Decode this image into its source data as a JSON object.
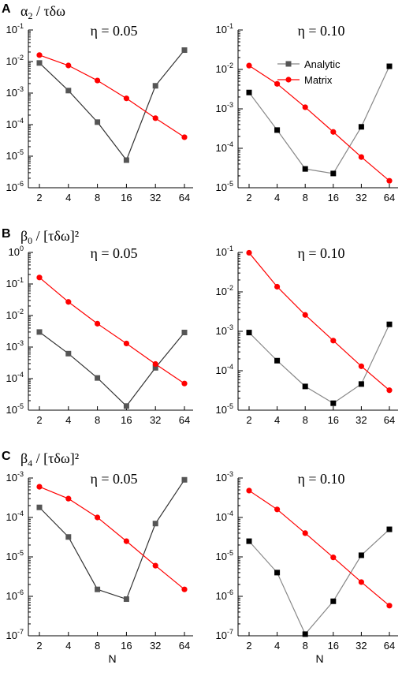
{
  "rows": [
    {
      "letter": "A",
      "label_base": "α",
      "label_sub": "2",
      "label_rest": " / τδω"
    },
    {
      "letter": "B",
      "label_base": "β",
      "label_sub": "0",
      "label_rest": " / [τδω]²"
    },
    {
      "letter": "C",
      "label_base": "β",
      "label_sub": "4",
      "label_rest": " / [τδω]²"
    }
  ],
  "x_axis_label": "N",
  "legend": {
    "analytic": "Analytic",
    "matrix": "Matrix"
  },
  "colors": {
    "analytic_left": "#333333",
    "analytic_right": "#888888",
    "analytic_marker": "#000000",
    "matrix": "#ff0000",
    "matrix_marker": "#ff0000"
  },
  "chart_data": [
    {
      "type": "line",
      "row": "A",
      "title": "η = 0.05",
      "log_y": true,
      "ylim_exp": [
        -6,
        -1
      ],
      "categories": [
        "2",
        "4",
        "8",
        "16",
        "32",
        "64"
      ],
      "series": [
        {
          "name": "Analytic",
          "values": [
            0.009,
            0.0012,
            0.00012,
            7.5e-06,
            0.0017,
            0.023
          ]
        },
        {
          "name": "Matrix",
          "values": [
            0.016,
            0.0075,
            0.0025,
            0.00068,
            0.00016,
            4e-05
          ]
        }
      ]
    },
    {
      "type": "line",
      "row": "A",
      "title": "η = 0.10",
      "log_y": true,
      "ylim_exp": [
        -5,
        -1
      ],
      "categories": [
        "2",
        "4",
        "8",
        "16",
        "32",
        "64"
      ],
      "series": [
        {
          "name": "Analytic",
          "values": [
            0.0026,
            0.00029,
            3e-05,
            2.3e-05,
            0.00035,
            0.012
          ]
        },
        {
          "name": "Matrix",
          "values": [
            0.0125,
            0.0043,
            0.0011,
            0.00026,
            6e-05,
            1.5e-05
          ]
        }
      ]
    },
    {
      "type": "line",
      "row": "B",
      "title": "η = 0.05",
      "log_y": true,
      "ylim_exp": [
        -5,
        0
      ],
      "categories": [
        "2",
        "4",
        "8",
        "16",
        "32",
        "64"
      ],
      "series": [
        {
          "name": "Analytic",
          "values": [
            0.003,
            0.00062,
            0.000105,
            1.35e-05,
            0.00022,
            0.0029
          ]
        },
        {
          "name": "Matrix",
          "values": [
            0.16,
            0.027,
            0.0055,
            0.0013,
            0.00029,
            7e-05
          ]
        }
      ]
    },
    {
      "type": "line",
      "row": "B",
      "title": "η = 0.10",
      "log_y": true,
      "ylim_exp": [
        -5,
        -1
      ],
      "categories": [
        "2",
        "4",
        "8",
        "16",
        "32",
        "64"
      ],
      "series": [
        {
          "name": "Analytic",
          "values": [
            0.00093,
            0.00018,
            4e-05,
            1.5e-05,
            4.6e-05,
            0.0015
          ]
        },
        {
          "name": "Matrix",
          "values": [
            0.098,
            0.0135,
            0.0026,
            0.00058,
            0.00013,
            3.2e-05
          ]
        }
      ]
    },
    {
      "type": "line",
      "row": "C",
      "title": "η = 0.05",
      "log_y": true,
      "ylim_exp": [
        -7,
        -3
      ],
      "categories": [
        "2",
        "4",
        "8",
        "16",
        "32",
        "64"
      ],
      "series": [
        {
          "name": "Analytic",
          "values": [
            0.00018,
            3.2e-05,
            1.5e-06,
            8.5e-07,
            7e-05,
            0.0009
          ]
        },
        {
          "name": "Matrix",
          "values": [
            0.0006,
            0.0003,
            0.0001,
            2.5e-05,
            6e-06,
            1.5e-06
          ]
        }
      ]
    },
    {
      "type": "line",
      "row": "C",
      "title": "η = 0.10",
      "log_y": true,
      "ylim_exp": [
        -7,
        -3
      ],
      "categories": [
        "2",
        "4",
        "8",
        "16",
        "32",
        "64"
      ],
      "series": [
        {
          "name": "Analytic",
          "values": [
            2.5e-05,
            4e-06,
            1.1e-07,
            7.5e-07,
            1.1e-05,
            5e-05
          ]
        },
        {
          "name": "Matrix",
          "values": [
            0.00048,
            0.00016,
            4e-05,
            9.7e-06,
            2.3e-06,
            5.8e-07
          ]
        }
      ]
    }
  ]
}
